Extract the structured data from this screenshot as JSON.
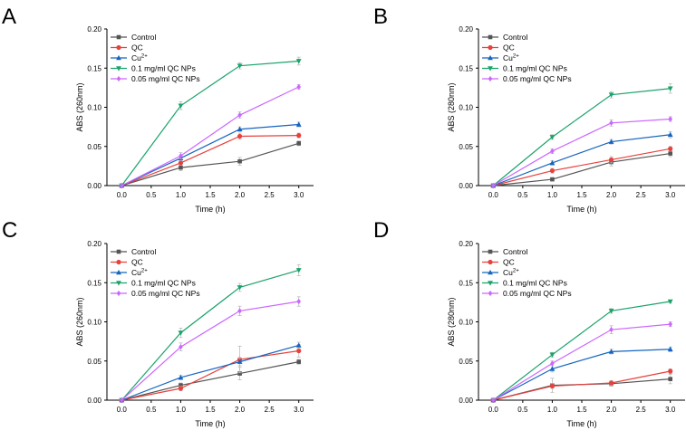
{
  "figure": {
    "series_styles": [
      {
        "color": "#555555",
        "marker": "square"
      },
      {
        "color": "#e8413c",
        "marker": "circle"
      },
      {
        "color": "#1565c0",
        "marker": "triangle-up"
      },
      {
        "color": "#1aa36a",
        "marker": "triangle-down"
      },
      {
        "color": "#cc66ff",
        "marker": "diamond"
      }
    ]
  },
  "chart_data": [
    {
      "panel": "A",
      "type": "line",
      "xlabel": "Time (h)",
      "ylabel": "ABS (260nm)",
      "xlim": [
        -0.25,
        3.25
      ],
      "ylim": [
        0,
        0.2
      ],
      "xticks": [
        "0.0",
        "0.5",
        "1.0",
        "1.5",
        "2.0",
        "2.5",
        "3.0"
      ],
      "yticks": [
        "0.00",
        "0.05",
        "0.10",
        "0.15",
        "0.20"
      ],
      "legend_position": "top-left",
      "x": [
        0,
        1,
        2,
        3
      ],
      "series": [
        {
          "name": "Control",
          "sup": "",
          "values": [
            0,
            0.023,
            0.031,
            0.054
          ],
          "err": [
            0,
            0.004,
            0.005,
            0.003
          ]
        },
        {
          "name": "QC",
          "sup": "",
          "values": [
            0,
            0.029,
            0.063,
            0.064
          ],
          "err": [
            0,
            0.003,
            0.004,
            0.003
          ]
        },
        {
          "name": "Cu",
          "sup": "2+",
          "values": [
            0,
            0.035,
            0.072,
            0.078
          ],
          "err": [
            0,
            0.003,
            0.003,
            0.003
          ]
        },
        {
          "name": "0.1 mg/ml QC NPs",
          "sup": "",
          "values": [
            0,
            0.102,
            0.153,
            0.159
          ],
          "err": [
            0,
            0.005,
            0.004,
            0.005
          ]
        },
        {
          "name": "0.05 mg/ml QC NPs",
          "sup": "",
          "values": [
            0,
            0.038,
            0.09,
            0.126
          ],
          "err": [
            0,
            0.004,
            0.004,
            0.003
          ]
        }
      ]
    },
    {
      "panel": "B",
      "type": "line",
      "xlabel": "Time (h)",
      "ylabel": "ABS (280nm)",
      "xlim": [
        -0.25,
        3.25
      ],
      "ylim": [
        0,
        0.2
      ],
      "xticks": [
        "0.0",
        "0.5",
        "1.0",
        "1.5",
        "2.0",
        "2.5",
        "3.0"
      ],
      "yticks": [
        "0.00",
        "0.05",
        "0.10",
        "0.15",
        "0.20"
      ],
      "legend_position": "top-left",
      "x": [
        0,
        1,
        2,
        3
      ],
      "series": [
        {
          "name": "Control",
          "sup": "",
          "values": [
            0,
            0.008,
            0.03,
            0.041
          ],
          "err": [
            0,
            0.002,
            0.005,
            0.004
          ]
        },
        {
          "name": "QC",
          "sup": "",
          "values": [
            0,
            0.019,
            0.033,
            0.047
          ],
          "err": [
            0,
            0.003,
            0.004,
            0.003
          ]
        },
        {
          "name": "Cu",
          "sup": "2+",
          "values": [
            0,
            0.029,
            0.056,
            0.065
          ],
          "err": [
            0,
            0.003,
            0.003,
            0.004
          ]
        },
        {
          "name": "0.1 mg/ml QC NPs",
          "sup": "",
          "values": [
            0,
            0.062,
            0.116,
            0.124
          ],
          "err": [
            0,
            0.003,
            0.004,
            0.006
          ]
        },
        {
          "name": "0.05 mg/ml QC NPs",
          "sup": "",
          "values": [
            0,
            0.044,
            0.08,
            0.085
          ],
          "err": [
            0,
            0.003,
            0.004,
            0.003
          ]
        }
      ]
    },
    {
      "panel": "C",
      "type": "line",
      "xlabel": "Time (h)",
      "ylabel": "ABS (260nm)",
      "xlim": [
        -0.25,
        3.25
      ],
      "ylim": [
        0,
        0.2
      ],
      "xticks": [
        "0.0",
        "0.5",
        "1.0",
        "1.5",
        "2.0",
        "2.5",
        "3.0"
      ],
      "yticks": [
        "0.00",
        "0.05",
        "0.10",
        "0.15",
        "0.20"
      ],
      "legend_position": "top-left",
      "x": [
        0,
        1,
        2,
        3
      ],
      "series": [
        {
          "name": "Control",
          "sup": "",
          "values": [
            0,
            0.019,
            0.034,
            0.049
          ],
          "err": [
            0,
            0.003,
            0.008,
            0.003
          ]
        },
        {
          "name": "QC",
          "sup": "",
          "values": [
            0,
            0.015,
            0.052,
            0.063
          ],
          "err": [
            0,
            0.003,
            0.017,
            0.008
          ]
        },
        {
          "name": "Cu",
          "sup": "2+",
          "values": [
            0,
            0.029,
            0.049,
            0.07
          ],
          "err": [
            0,
            0.003,
            0.005,
            0.004
          ]
        },
        {
          "name": "0.1 mg/ml QC NPs",
          "sup": "",
          "values": [
            0,
            0.086,
            0.144,
            0.166
          ],
          "err": [
            0,
            0.006,
            0.005,
            0.007
          ]
        },
        {
          "name": "0.05 mg/ml QC NPs",
          "sup": "",
          "values": [
            0,
            0.068,
            0.114,
            0.126
          ],
          "err": [
            0,
            0.005,
            0.006,
            0.006
          ]
        }
      ]
    },
    {
      "panel": "D",
      "type": "line",
      "xlabel": "Time (h)",
      "ylabel": "ABS (280nm)",
      "xlim": [
        -0.25,
        3.25
      ],
      "ylim": [
        0,
        0.2
      ],
      "xticks": [
        "0.0",
        "0.5",
        "1.0",
        "1.5",
        "2.0",
        "2.5",
        "3.0"
      ],
      "yticks": [
        "0.00",
        "0.05",
        "0.10",
        "0.15",
        "0.20"
      ],
      "legend_position": "top-left",
      "x": [
        0,
        1,
        2,
        3
      ],
      "series": [
        {
          "name": "Control",
          "sup": "",
          "values": [
            0,
            0.019,
            0.021,
            0.027
          ],
          "err": [
            0,
            0.009,
            0.003,
            0.006
          ]
        },
        {
          "name": "QC",
          "sup": "",
          "values": [
            0,
            0.018,
            0.022,
            0.037
          ],
          "err": [
            0,
            0.003,
            0.003,
            0.003
          ]
        },
        {
          "name": "Cu",
          "sup": "2+",
          "values": [
            0,
            0.04,
            0.062,
            0.065
          ],
          "err": [
            0,
            0.004,
            0.003,
            0.003
          ]
        },
        {
          "name": "0.1 mg/ml QC NPs",
          "sup": "",
          "values": [
            0,
            0.058,
            0.114,
            0.126
          ],
          "err": [
            0,
            0.003,
            0.003,
            0.002
          ]
        },
        {
          "name": "0.05 mg/ml QC NPs",
          "sup": "",
          "values": [
            0,
            0.047,
            0.09,
            0.097
          ],
          "err": [
            0,
            0.003,
            0.005,
            0.003
          ]
        }
      ]
    }
  ]
}
